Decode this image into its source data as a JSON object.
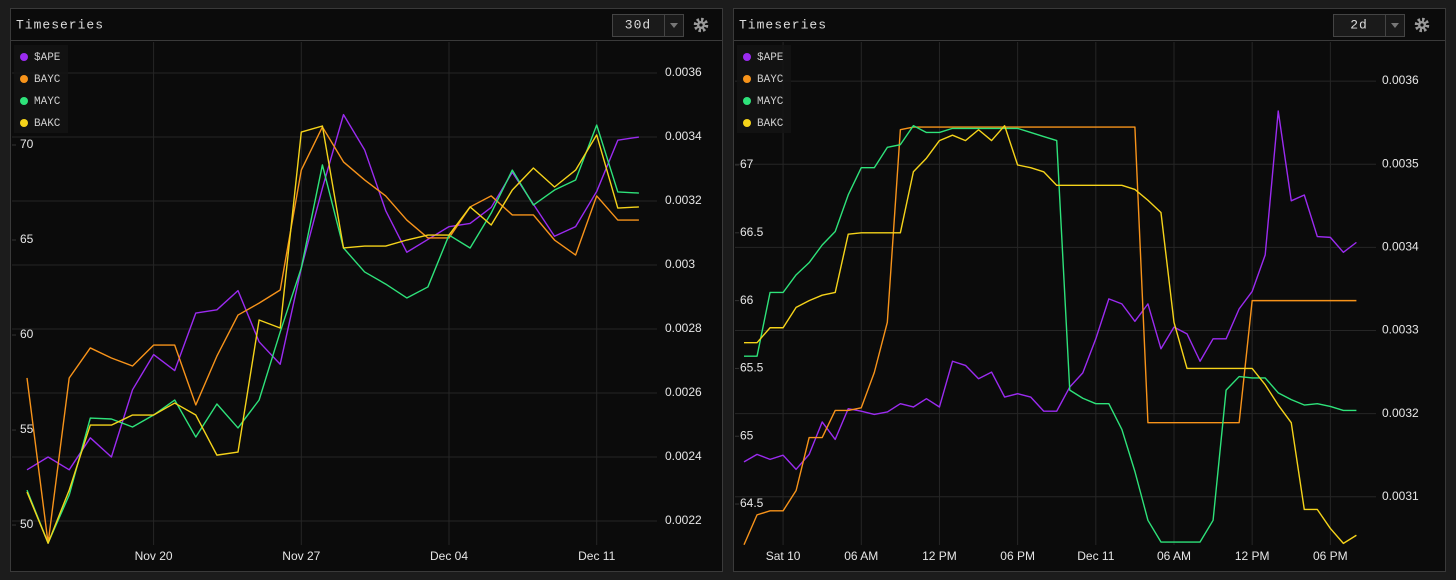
{
  "panels": [
    {
      "title": "Timeseries",
      "range": "30d"
    },
    {
      "title": "Timeseries",
      "range": "2d"
    }
  ],
  "chart_data": [
    {
      "type": "line",
      "legend": "upper left",
      "grid": true,
      "categories": [
        null,
        null,
        null,
        null,
        null,
        null,
        "Nov 20",
        null,
        null,
        null,
        null,
        null,
        null,
        "Nov 27",
        null,
        null,
        null,
        null,
        null,
        null,
        "Dec 04",
        null,
        null,
        null,
        null,
        null,
        null,
        "Dec 11",
        null,
        null
      ],
      "ylim": [
        48.95,
        75.42
      ],
      "yticks": [
        50,
        55,
        60,
        65,
        70
      ],
      "y2lim": [
        0.002125,
        0.003697
      ],
      "y2ticks": [
        0.0022,
        0.0024,
        0.0026,
        0.0028,
        0.003,
        0.0032,
        0.0034,
        0.0036
      ],
      "series": [
        {
          "name": "$APE",
          "color": "#9b2bf0",
          "axis": "y2",
          "values": [
            0.00236,
            0.0024,
            0.00236,
            0.00246,
            0.0024,
            0.00261,
            0.00272,
            0.00267,
            0.00285,
            0.00286,
            0.00292,
            0.00276,
            0.00269,
            0.00299,
            0.00324,
            0.00347,
            0.00336,
            0.00317,
            0.00304,
            0.00308,
            0.00312,
            0.00313,
            0.00318,
            0.00329,
            0.00319,
            0.00309,
            0.00312,
            0.00323,
            0.00339,
            0.0034
          ]
        },
        {
          "name": "BAYC",
          "color": "#f7931a",
          "values": [
            57.74,
            49.05,
            57.74,
            59.32,
            58.79,
            58.37,
            59.47,
            59.47,
            56.32,
            58.89,
            61.05,
            61.68,
            62.37,
            68.68,
            70.95,
            69.11,
            68.16,
            67.32,
            66.05,
            65.11,
            65.11,
            66.74,
            67.32,
            66.32,
            66.32,
            65.0,
            64.21,
            67.32,
            66.05,
            66.05
          ]
        },
        {
          "name": "MAYC",
          "color": "#2ee27a",
          "values": [
            51.84,
            49.05,
            51.58,
            55.63,
            55.58,
            55.16,
            55.79,
            56.58,
            54.63,
            56.37,
            55.11,
            56.58,
            60.16,
            63.53,
            68.95,
            64.58,
            63.32,
            62.68,
            61.95,
            62.53,
            65.26,
            64.58,
            66.42,
            68.68,
            66.84,
            67.63,
            68.16,
            71.05,
            67.53,
            67.47
          ]
        },
        {
          "name": "BAKC",
          "color": "#f5d31a",
          "values": [
            51.74,
            49.05,
            51.84,
            55.26,
            55.26,
            55.79,
            55.79,
            56.42,
            55.79,
            53.68,
            53.84,
            60.79,
            60.37,
            70.68,
            71.0,
            64.58,
            64.68,
            64.68,
            65.0,
            65.26,
            65.26,
            66.74,
            65.79,
            67.63,
            68.79,
            67.79,
            68.68,
            70.53,
            66.68,
            66.74
          ]
        }
      ]
    },
    {
      "type": "line",
      "legend": "upper left",
      "grid": true,
      "categories": [
        null,
        null,
        null,
        "Sat 10",
        null,
        null,
        null,
        null,
        null,
        "06 AM",
        null,
        null,
        null,
        null,
        null,
        "12 PM",
        null,
        null,
        null,
        null,
        null,
        "06 PM",
        null,
        null,
        null,
        null,
        null,
        "Dec 11",
        null,
        null,
        null,
        null,
        null,
        "06 AM",
        null,
        null,
        null,
        null,
        null,
        "12 PM",
        null,
        null,
        null,
        null,
        null,
        "06 PM",
        null,
        null
      ],
      "ylim": [
        64.198,
        67.907
      ],
      "yticks": [
        64.5,
        65,
        65.5,
        66,
        66.5,
        67
      ],
      "y2lim": [
        0.003042,
        0.003647
      ],
      "y2ticks": [
        0.0031,
        0.0032,
        0.0033,
        0.0034,
        0.0035,
        0.0036
      ],
      "series": [
        {
          "name": "$APE",
          "color": "#9b2bf0",
          "axis": "y2",
          "values": [
            0.003142,
            0.003151,
            0.003145,
            0.00315,
            0.003133,
            0.003151,
            0.00319,
            0.003169,
            0.003206,
            0.003203,
            0.003199,
            0.003202,
            0.003212,
            0.003208,
            0.003218,
            0.003208,
            0.003263,
            0.003258,
            0.003242,
            0.00325,
            0.00322,
            0.003224,
            0.00322,
            0.003203,
            0.003203,
            0.003232,
            0.003249,
            0.00329,
            0.003338,
            0.003332,
            0.003311,
            0.003332,
            0.003278,
            0.003304,
            0.003296,
            0.003263,
            0.00329,
            0.00329,
            0.003326,
            0.003347,
            0.003391,
            0.003564,
            0.003456,
            0.003463,
            0.003413,
            0.003412,
            0.003394,
            0.003406
          ]
        },
        {
          "name": "BAYC",
          "color": "#f7931a",
          "values": [
            64.2,
            64.42,
            64.45,
            64.45,
            64.6,
            64.99,
            64.99,
            65.19,
            65.19,
            65.21,
            65.47,
            65.84,
            67.26,
            67.28,
            67.28,
            67.28,
            67.28,
            67.28,
            67.28,
            67.28,
            67.28,
            67.28,
            67.28,
            67.28,
            67.28,
            67.28,
            67.28,
            67.28,
            67.28,
            67.28,
            67.28,
            65.1,
            65.1,
            65.1,
            65.1,
            65.1,
            65.1,
            65.1,
            65.1,
            66.0,
            66.0,
            66.0,
            66.0,
            66.0,
            66.0,
            66.0,
            66.0,
            66.0
          ]
        },
        {
          "name": "MAYC",
          "color": "#2ee27a",
          "values": [
            65.59,
            65.59,
            66.06,
            66.06,
            66.19,
            66.28,
            66.41,
            66.51,
            66.78,
            66.98,
            66.98,
            67.13,
            67.15,
            67.29,
            67.24,
            67.24,
            67.27,
            67.27,
            67.27,
            67.27,
            67.27,
            67.27,
            67.24,
            67.21,
            67.18,
            65.34,
            65.28,
            65.24,
            65.24,
            65.05,
            64.74,
            64.38,
            64.22,
            64.22,
            64.22,
            64.22,
            64.38,
            65.34,
            65.44,
            65.43,
            65.43,
            65.32,
            65.27,
            65.23,
            65.24,
            65.22,
            65.19,
            65.19
          ]
        },
        {
          "name": "BAKC",
          "color": "#f5d31a",
          "values": [
            65.69,
            65.69,
            65.8,
            65.8,
            65.95,
            66.0,
            66.04,
            66.06,
            66.49,
            66.5,
            66.5,
            66.5,
            66.5,
            66.95,
            67.05,
            67.18,
            67.22,
            67.18,
            67.26,
            67.18,
            67.29,
            67.0,
            66.98,
            66.95,
            66.85,
            66.85,
            66.85,
            66.85,
            66.85,
            66.85,
            66.82,
            66.74,
            66.65,
            65.84,
            65.5,
            65.5,
            65.5,
            65.5,
            65.5,
            65.5,
            65.38,
            65.23,
            65.1,
            64.46,
            64.46,
            64.32,
            64.21,
            64.27
          ]
        }
      ]
    }
  ]
}
